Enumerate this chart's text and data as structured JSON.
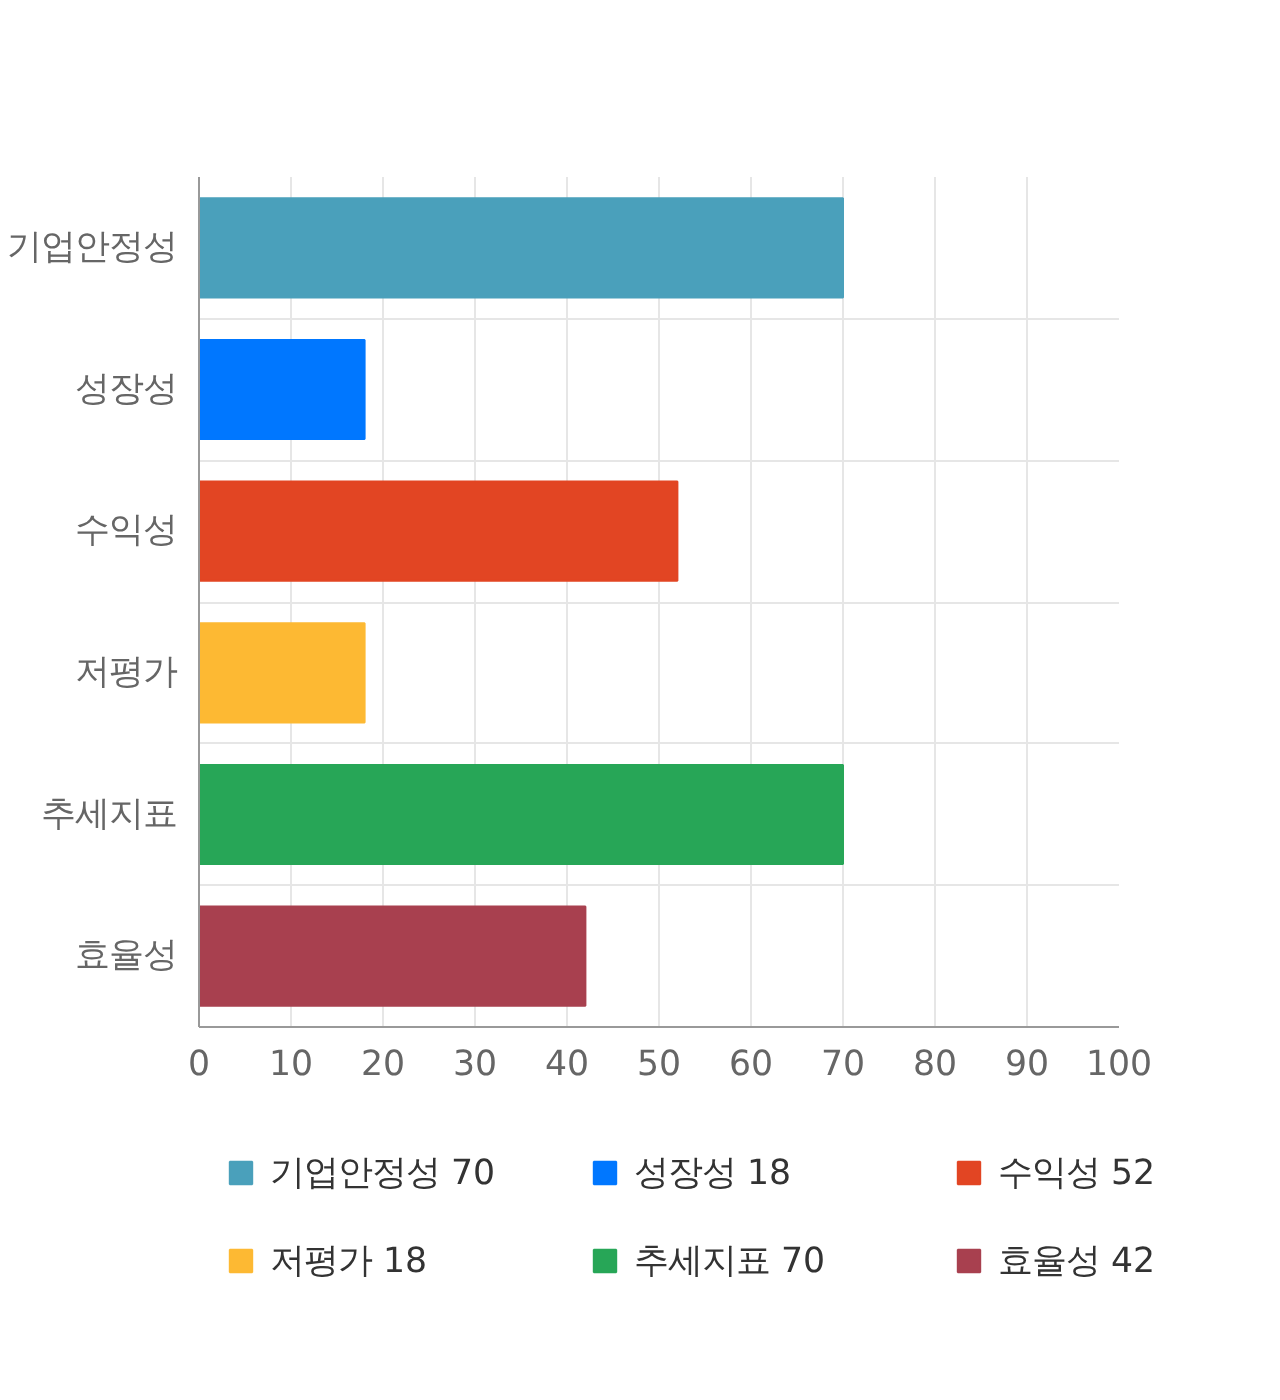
{
  "chart_data": {
    "type": "bar",
    "orientation": "horizontal",
    "categories": [
      "기업안정성",
      "성장성",
      "수익성",
      "저평가",
      "추세지표",
      "효율성"
    ],
    "series": [
      {
        "name": "기업안정성 70",
        "color": "#4aa0bb",
        "values": [
          70,
          null,
          null,
          null,
          null,
          null
        ]
      },
      {
        "name": "성장성 18",
        "color": "#0077ff",
        "values": [
          null,
          18,
          null,
          null,
          null,
          null
        ]
      },
      {
        "name": "수익성 52",
        "color": "#e24523",
        "values": [
          null,
          null,
          52,
          null,
          null,
          null
        ]
      },
      {
        "name": "저평가 18",
        "color": "#fdb933",
        "values": [
          null,
          null,
          null,
          18,
          null,
          null
        ]
      },
      {
        "name": "추세지표 70",
        "color": "#27a657",
        "values": [
          null,
          null,
          null,
          null,
          70,
          null
        ]
      },
      {
        "name": "효율성 42",
        "color": "#a8404f",
        "values": [
          null,
          null,
          null,
          null,
          null,
          42
        ]
      }
    ],
    "xlim": [
      0,
      100
    ],
    "xticks": [
      0,
      10,
      20,
      30,
      40,
      50,
      60,
      70,
      80,
      90,
      100
    ],
    "grid": true,
    "legend": "bottom"
  }
}
